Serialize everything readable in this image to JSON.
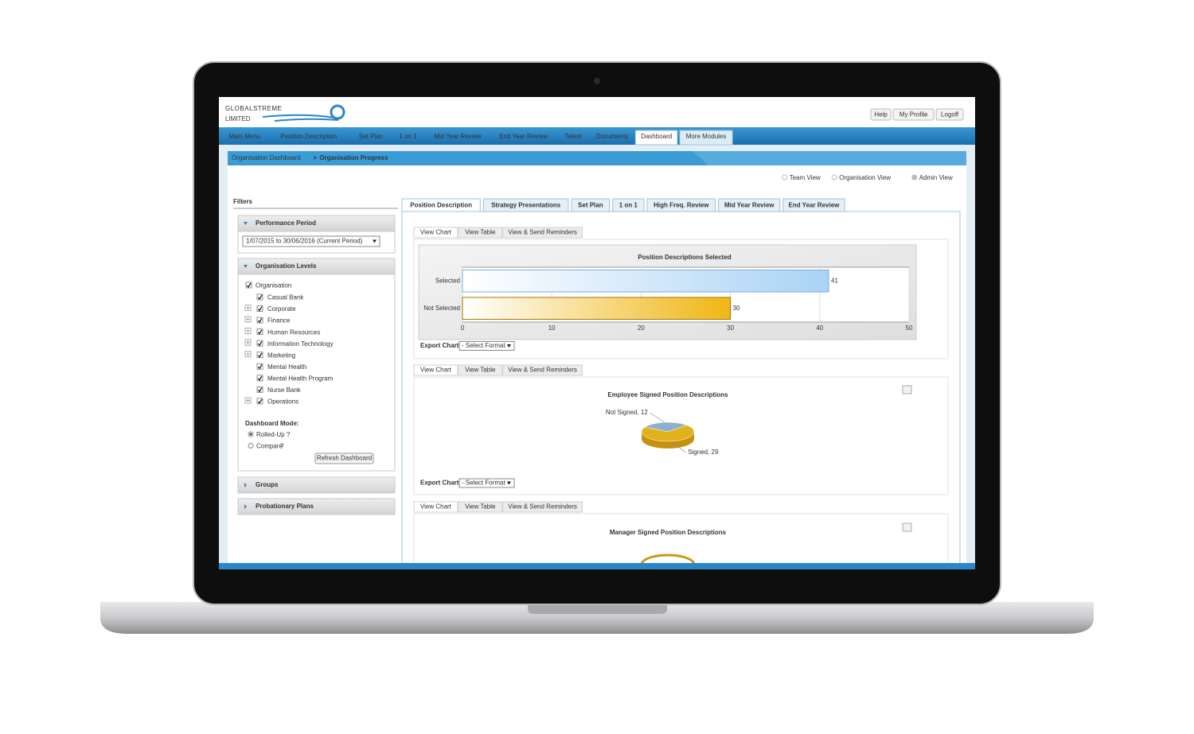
{
  "header": {
    "logo": [
      "GLOBALSTREME",
      "LIMITED"
    ],
    "buttons": [
      "Help",
      "My Profile",
      "Logoff"
    ]
  },
  "nav": {
    "items": [
      "Main Menu",
      "Position Description",
      "Set Plan",
      "1 on 1",
      "Mid Year Review",
      "End Year Review",
      "Talent",
      "Documents",
      "Dashboard",
      "More Modules"
    ],
    "active_index": 8
  },
  "breadcrumb": {
    "parent": "Organisation Dashboard",
    "separator": ">",
    "current": "Organisation Progress"
  },
  "view_options": {
    "items": [
      "Team View",
      "Organisation View",
      "Admin View"
    ],
    "selected_index": 2
  },
  "filters": {
    "title": "Filters",
    "performance": {
      "header": "Performance Period",
      "period": "1/07/2015 to 30/06/2016 (Current Period)"
    },
    "levels": {
      "header": "Organisation Levels",
      "root": "Organisation",
      "children": [
        {
          "name": "Casual Bank",
          "expandable": false
        },
        {
          "name": "Corporate",
          "expandable": true
        },
        {
          "name": "Finance",
          "expandable": true
        },
        {
          "name": "Human Resources",
          "expandable": true
        },
        {
          "name": "Information Technology",
          "expandable": true
        },
        {
          "name": "Marketing",
          "expandable": true
        },
        {
          "name": "Mental Health",
          "expandable": false
        },
        {
          "name": "Mental Health Program",
          "expandable": false
        },
        {
          "name": "Nurse Bank",
          "expandable": false
        },
        {
          "name": "Operations",
          "expandable": true
        }
      ],
      "mode_label": "Dashboard Mode:",
      "modes": [
        {
          "label": "Rolled-Up",
          "help": "?"
        },
        {
          "label": "Compare",
          "help": "?"
        }
      ],
      "mode_selected_index": 0,
      "refresh": "Refresh Dashboard"
    },
    "groups": "Groups",
    "probationary": "Probationary Plans"
  },
  "tabs": {
    "items": [
      "Position Description",
      "Strategy Presentations",
      "Set Plan",
      "1 on 1",
      "High Freq. Review",
      "Mid Year Review",
      "End Year Review"
    ],
    "active_index": 0
  },
  "panels": [
    {
      "subtabs": [
        "View Chart",
        "View Table",
        "View & Send Reminders"
      ],
      "export_label": "Export Chart:",
      "export_select": "- Select Format -"
    },
    {
      "subtabs": [
        "View Chart",
        "View Table",
        "View & Send Reminders"
      ],
      "export_label": "Export Chart:",
      "export_select": "- Select Format -"
    },
    {
      "subtabs": [
        "View Chart",
        "View Table",
        "View & Send Reminders"
      ]
    }
  ],
  "chart_data": [
    {
      "type": "bar",
      "orientation": "horizontal",
      "title": "Position Descriptions Selected",
      "categories": [
        "Selected",
        "Not Selected"
      ],
      "values": [
        41,
        30
      ],
      "colors": [
        "#a9d3f5",
        "#f0b614"
      ],
      "xlim": [
        0,
        50
      ],
      "xticks": [
        0,
        10,
        20,
        30,
        40,
        50
      ],
      "grid": true
    },
    {
      "type": "pie",
      "title": "Employee Signed Position Descriptions",
      "categories": [
        "Not Signed",
        "Signed"
      ],
      "values": [
        12,
        29
      ],
      "value_labels": [
        "Not Signed, 12",
        "Signed, 29"
      ],
      "colors": [
        "#8fb0cc",
        "#e2b21c"
      ]
    },
    {
      "type": "pie",
      "title": "Manager Signed Position Descriptions"
    }
  ]
}
